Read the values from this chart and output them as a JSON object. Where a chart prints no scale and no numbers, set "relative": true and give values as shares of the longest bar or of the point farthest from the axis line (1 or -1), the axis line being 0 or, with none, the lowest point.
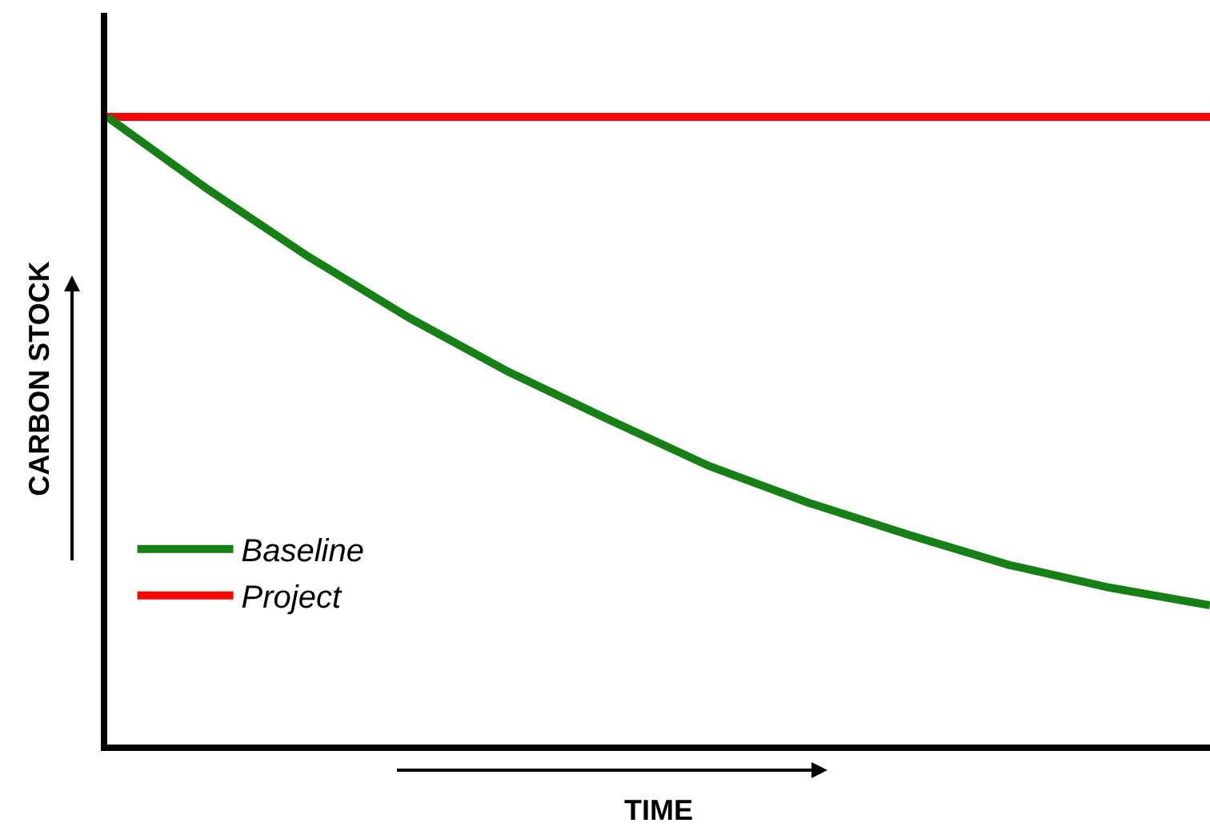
{
  "chart_data": {
    "type": "line",
    "relative": true,
    "xlabel": "TIME",
    "ylabel": "CARBON STOCK",
    "categories": [
      null,
      null,
      null,
      null,
      null,
      null,
      null,
      null,
      null,
      null,
      null,
      null
    ],
    "series": [
      {
        "name": "Baseline",
        "color": "#168016",
        "values": [
          1.0,
          0.885,
          0.778,
          0.681,
          0.594,
          0.518,
          0.444,
          0.385,
          0.334,
          0.286,
          0.25,
          0.222
        ]
      },
      {
        "name": "Project",
        "color": "#ff0000",
        "values": [
          1,
          1,
          1,
          1,
          1,
          1,
          1,
          1,
          1,
          1,
          1,
          1
        ]
      }
    ],
    "legend": "bottom left",
    "marker": "none",
    "line_style": "solid"
  }
}
